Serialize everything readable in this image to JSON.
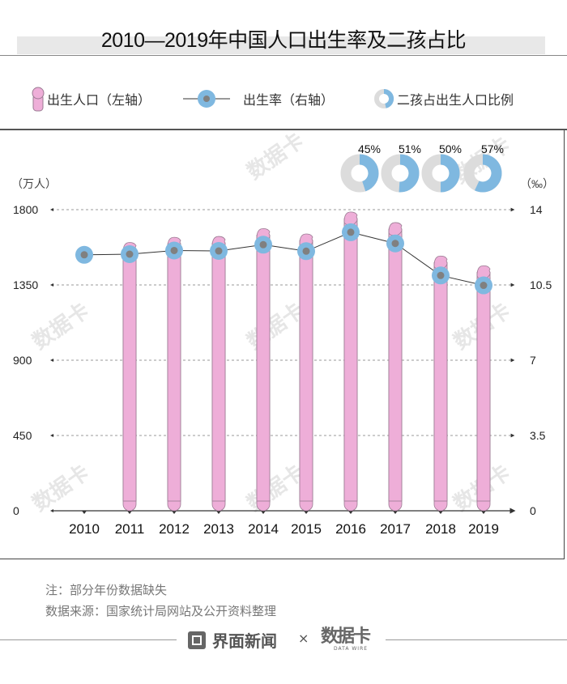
{
  "header": {
    "title": "2010—2019年中国人口出生率及二孩占比"
  },
  "legend": {
    "births_label": "出生人口（左轴）",
    "rate_label": "出生率（右轴）",
    "second_child_label": "二孩占出生人口比例"
  },
  "axes": {
    "left_unit": "（万人）",
    "right_unit": "（‰）",
    "left_ticks": [
      "0",
      "450",
      "900",
      "1350",
      "1800"
    ],
    "right_ticks": [
      "0",
      "3.5",
      "7",
      "10.5",
      "14"
    ]
  },
  "colors": {
    "bar_fill": "#eeaed8",
    "bar_stroke": "#9a7a92",
    "rate_circle": "#7fb8e0",
    "rate_dot": "#808080",
    "donut_share": "#7fb8e0",
    "donut_rest": "#dcdcdc",
    "grid": "#777777"
  },
  "notes": {
    "note": "注：部分年份数据缺失",
    "source": "数据来源：国家统计局网站及公开资料整理"
  },
  "footer": {
    "brand": "界面新闻",
    "times": "×",
    "partner": "数据卡",
    "partner_sub": "DATA WIRE"
  },
  "chart_data": {
    "type": "bar",
    "title": "2010—2019年中国人口出生率及二孩占比",
    "categories": [
      "2010",
      "2011",
      "2012",
      "2013",
      "2014",
      "2015",
      "2016",
      "2017",
      "2018",
      "2019"
    ],
    "series": [
      {
        "name": "出生人口（左轴）",
        "type": "bar",
        "axis": "left",
        "unit": "万人",
        "values": [
          null,
          1604,
          1635,
          1640,
          1687,
          1655,
          1786,
          1723,
          1523,
          1465
        ]
      },
      {
        "name": "出生率（右轴）",
        "type": "line",
        "axis": "right",
        "unit": "‰",
        "values": [
          11.9,
          11.93,
          12.1,
          12.08,
          12.37,
          12.07,
          12.95,
          12.43,
          10.94,
          10.48
        ]
      },
      {
        "name": "二孩占出生人口比例",
        "type": "pie",
        "unit": "%",
        "categories": [
          "2016",
          "2017",
          "2018",
          "2019"
        ],
        "values": [
          45,
          51,
          50,
          57
        ],
        "labels": [
          "45%",
          "51%",
          "50%",
          "57%"
        ]
      }
    ],
    "xlabel": "",
    "ylabel_left": "万人",
    "ylabel_right": "‰",
    "ylim_left": [
      0,
      1800
    ],
    "ylim_right": [
      0,
      14
    ],
    "left_ticks": [
      0,
      450,
      900,
      1350,
      1800
    ],
    "right_ticks": [
      0,
      3.5,
      7,
      10.5,
      14
    ],
    "grid": true,
    "legend_position": "top",
    "annotations": [
      "注：部分年份数据缺失",
      "数据来源：国家统计局网站及公开资料整理"
    ]
  }
}
